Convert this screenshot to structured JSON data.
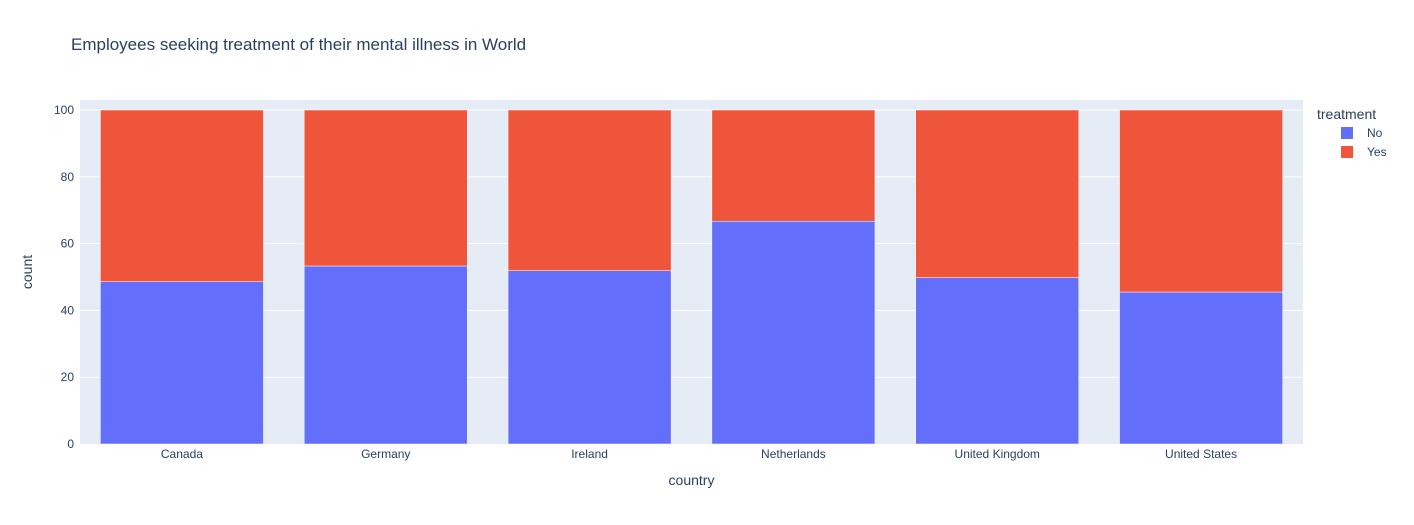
{
  "chart_data": {
    "type": "bar",
    "barmode": "stack",
    "title": "Employees seeking treatment of their mental illness in World",
    "xlabel": "country",
    "ylabel": "count",
    "ylim": [
      0,
      103
    ],
    "yticks": [
      0,
      20,
      40,
      60,
      80,
      100
    ],
    "grid": true,
    "categories": [
      "Canada",
      "Germany",
      "Ireland",
      "Netherlands",
      "United Kingdom",
      "United States"
    ],
    "legend": {
      "title": "treatment",
      "position": "right"
    },
    "series": [
      {
        "name": "No",
        "color": "#636efa",
        "values": [
          48.6,
          53.3,
          51.9,
          66.7,
          49.8,
          45.5
        ]
      },
      {
        "name": "Yes",
        "color": "#ef553b",
        "values": [
          51.4,
          46.7,
          48.1,
          33.3,
          50.2,
          54.5
        ]
      }
    ],
    "plot_background": "#e5ecf6",
    "grid_color": "#ffffff",
    "text_color": "#2a3f5f"
  }
}
